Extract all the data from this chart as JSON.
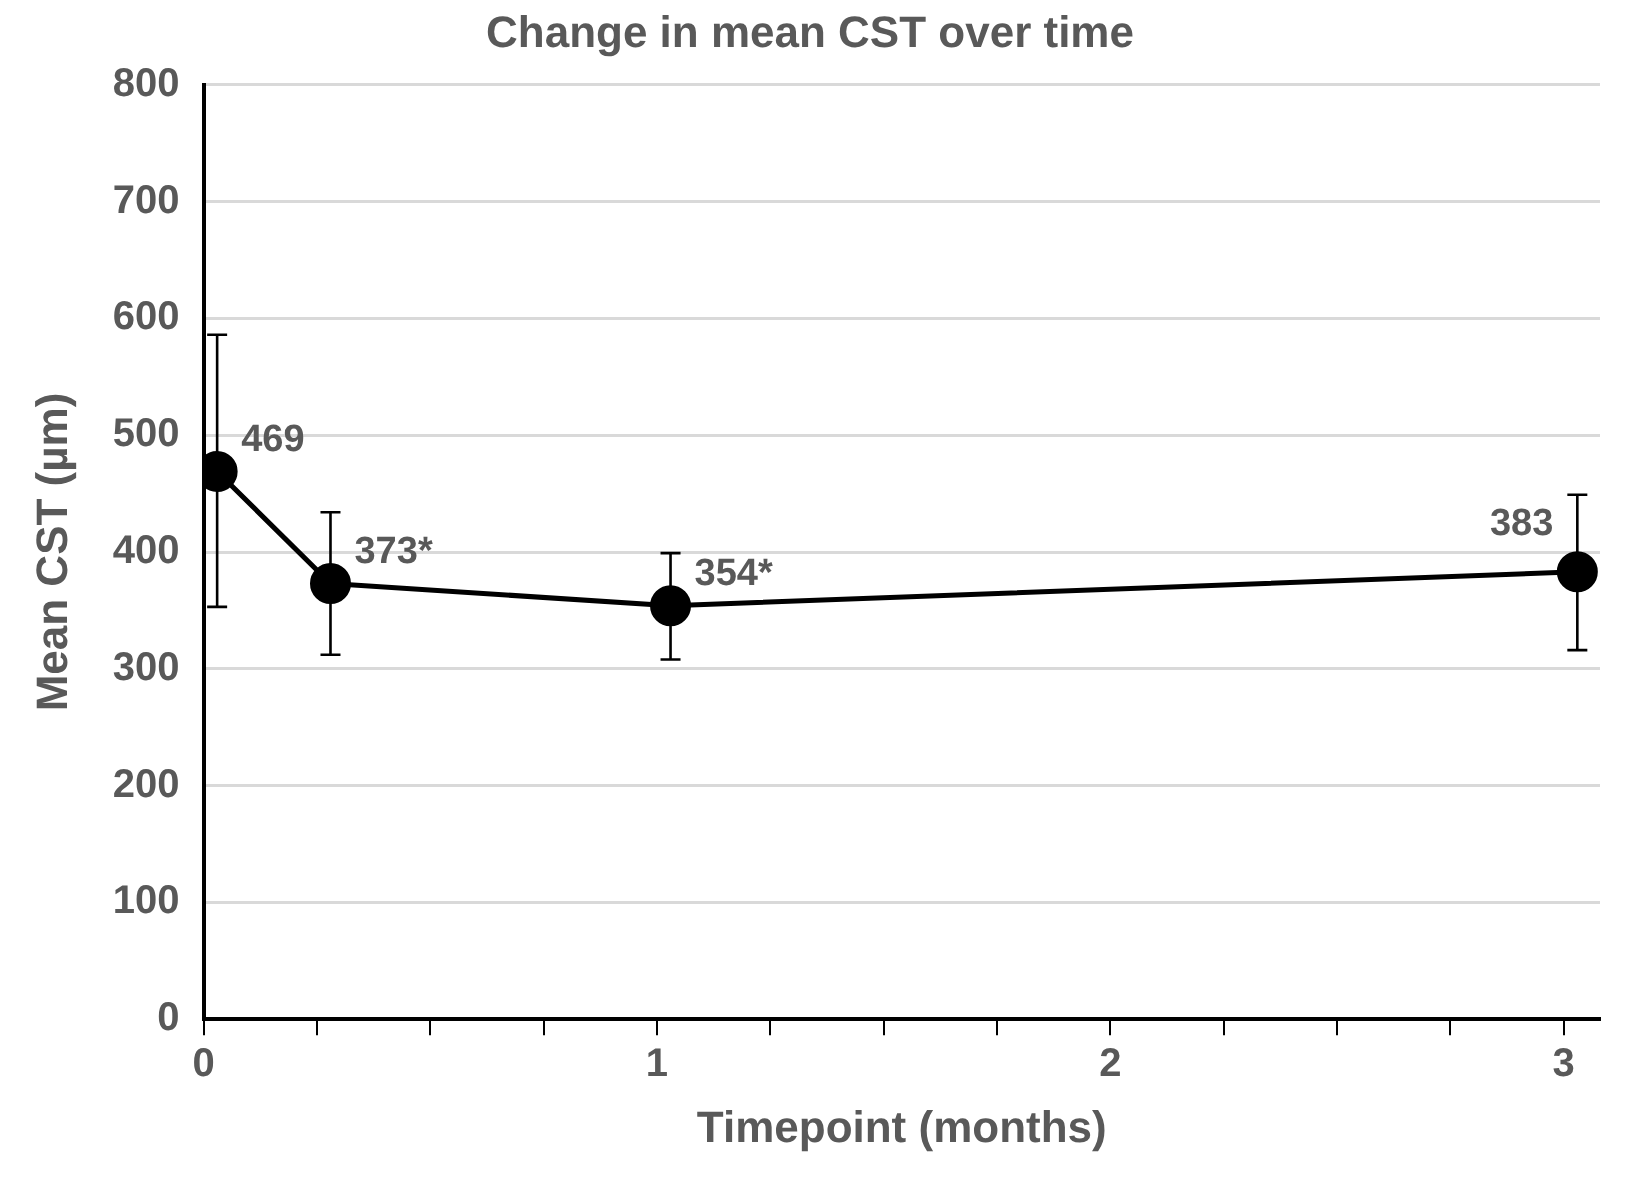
{
  "chart_data": {
    "type": "line",
    "title": "Change in mean CST over time",
    "xlabel": "Timepoint (months)",
    "ylabel": "Mean CST (µm)",
    "x": [
      0.03,
      0.28,
      1.03,
      3.03
    ],
    "series": [
      {
        "color": "#000000",
        "values": [
          469,
          373,
          354,
          383
        ],
        "errors": [
          [
            353,
            586
          ],
          [
            312,
            434
          ],
          [
            308,
            399
          ],
          [
            316,
            449
          ]
        ],
        "value_labels": [
          "469",
          "373*",
          "354*",
          "383"
        ]
      }
    ],
    "xlim": [
      0,
      3.08
    ],
    "xticks": [
      0,
      {
        "value": 0.25,
        "label": null
      },
      {
        "value": 0.5,
        "label": null
      },
      {
        "value": 0.75,
        "label": null
      },
      1,
      {
        "value": 1.25,
        "label": null
      },
      {
        "value": 1.5,
        "label": null
      },
      {
        "value": 1.75,
        "label": null
      },
      2,
      {
        "value": 2.25,
        "label": null
      },
      {
        "value": 2.5,
        "label": null
      },
      {
        "value": 2.75,
        "label": null
      },
      3
    ],
    "ylim": [
      0,
      800
    ],
    "yticks": [
      0,
      100,
      200,
      300,
      400,
      500,
      600,
      700,
      800
    ],
    "grid": "y",
    "legend": false,
    "marker": "circle",
    "line_style": "solid"
  }
}
